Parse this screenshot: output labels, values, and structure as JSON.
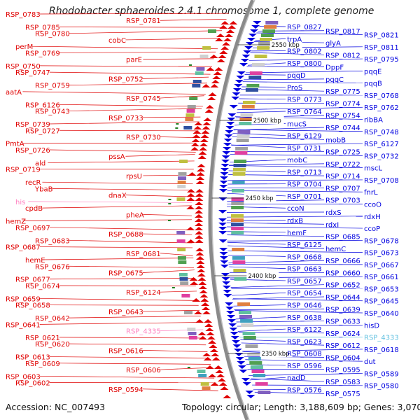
{
  "header": {
    "title": "Rhodobacter sphaeroides 2.4.1 chromosome 1, complete genome"
  },
  "footer": {
    "accession": "Accession: NC_007493",
    "summary": "Topology: circular; Length: 3,188,609 bp; Genes: 3,070"
  },
  "colors": {
    "forward": "#e00000",
    "reverse": "#0000e0",
    "rna": "#ff80c0",
    "trna": "#60c0e0"
  },
  "ruler": [
    {
      "label": "2550 kbp"
    },
    {
      "label": "2500 kbp"
    },
    {
      "label": "2450 kbp"
    },
    {
      "label": "2400 kbp"
    },
    {
      "label": "2350 kbp"
    }
  ],
  "labels_left": [
    "RSP_0783",
    "RSP_0781",
    "RSP_0785",
    "RSP_0780",
    "cobC",
    "perM",
    "RSP_0769",
    "parE",
    "RSP_0750",
    "RSP_0747",
    "RSP_0752",
    "RSP_0759",
    "aatA",
    "RSP_0745",
    "RSP_6126",
    "RSP_0743",
    "RSP_0733",
    "RSP_0739",
    "RSP_0727",
    "RSP_0730",
    "PmtA",
    "RSP_0726",
    "pssA",
    "ald",
    "RSP_0719",
    "rpsU",
    "recR",
    "YbaB",
    "dnaX",
    "his",
    "cpdB",
    "pheA",
    "hemZ",
    "RSP_0697",
    "RSP_0688",
    "RSP_0683",
    "RSP_0687",
    "RSP_0681",
    "hemE",
    "RSP_0676",
    "RSP_0675",
    "RSP_0677",
    "RSP_0674",
    "RSP_6124",
    "RSP_0659",
    "RSP_0658",
    "RSP_0643",
    "RSP_0642",
    "RSP_0641",
    "RSP_4335",
    "RSP_0621",
    "RSP_0620",
    "RSP_0616",
    "RSP_0613",
    "RSP_0609",
    "RSP_0606",
    "RSP_0603",
    "RSP_0602",
    "RSP_0594"
  ],
  "labels_right": [
    "RSP_0827",
    "RSP_0817",
    "RSP_0821",
    "trpA",
    "glyA",
    "RSP_0811",
    "RSP_0802",
    "RSP_0812",
    "RSP_0795",
    "RSP_0800",
    "DppF",
    "pqqE",
    "pqqD",
    "pqqC",
    "pqqB",
    "ProS",
    "RSP_0775",
    "RSP_0768",
    "RSP_0773",
    "RSP_0774",
    "RSP_0762",
    "RSP_0764",
    "RSP_0754",
    "ribBA",
    "mucS",
    "RSP_0744",
    "RSP_0748",
    "RSP_6129",
    "mobB",
    "RSP_6127",
    "RSP_0731",
    "RSP_0725",
    "RSP_0732",
    "mobC",
    "RSP_0722",
    "mscL",
    "RSP_0713",
    "RSP_0714",
    "RSP_0708",
    "RSP_0704",
    "RSP_0707",
    "fnrL",
    "RSP_0701",
    "RSP_0703",
    "ccoO",
    "ccoN",
    "rdxS",
    "rdxH",
    "rdxB",
    "rdxI",
    "ccoP",
    "hemF",
    "RSP_0685",
    "RSP_0678",
    "RSP_6125",
    "hemC",
    "RSP_0673",
    "RSP_0668",
    "RSP_0666",
    "RSP_0667",
    "RSP_0663",
    "RSP_0660",
    "RSP_0661",
    "RSP_0657",
    "RSP_0652",
    "RSP_0653",
    "RSP_0654",
    "RSP_0644",
    "RSP_0645",
    "RSP_0646",
    "RSP_0639",
    "RSP_0640",
    "RSP_0638",
    "RSP_0633",
    "hisD",
    "RSP_6122",
    "RSP_0624",
    "RSP_4333",
    "RSP_0623",
    "RSP_0612",
    "RSP_0618",
    "RSP_0608",
    "RSP_0604",
    "dut",
    "RSP_0596",
    "RSP_0595",
    "RSP_0589",
    "nadD",
    "RSP_0583",
    "RSP_0580",
    "RSP_0576",
    "RSP_0575"
  ]
}
